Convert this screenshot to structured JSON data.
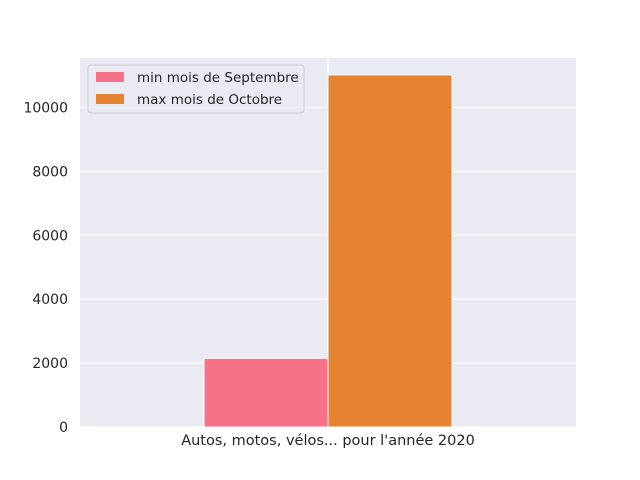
{
  "chart_data": {
    "type": "bar",
    "title": "",
    "xlabel": "",
    "ylabel": "",
    "categories": [
      "Autos, motos, vélos... pour l'année 2020"
    ],
    "series": [
      {
        "name": "min mois de Septembre",
        "values": [
          2150
        ],
        "color": "#f77189"
      },
      {
        "name": "max mois de Octobre",
        "values": [
          11020
        ],
        "color": "#e68332"
      }
    ],
    "ylim": [
      0,
      11550
    ],
    "yticks": [
      0,
      2000,
      4000,
      6000,
      8000,
      10000
    ],
    "ytick_labels": [
      "0",
      "2000",
      "4000",
      "6000",
      "8000",
      "10000"
    ],
    "grid": true,
    "legend_position": "top-left",
    "background": "#eaeaf2",
    "grid_color": "#ffffff"
  }
}
